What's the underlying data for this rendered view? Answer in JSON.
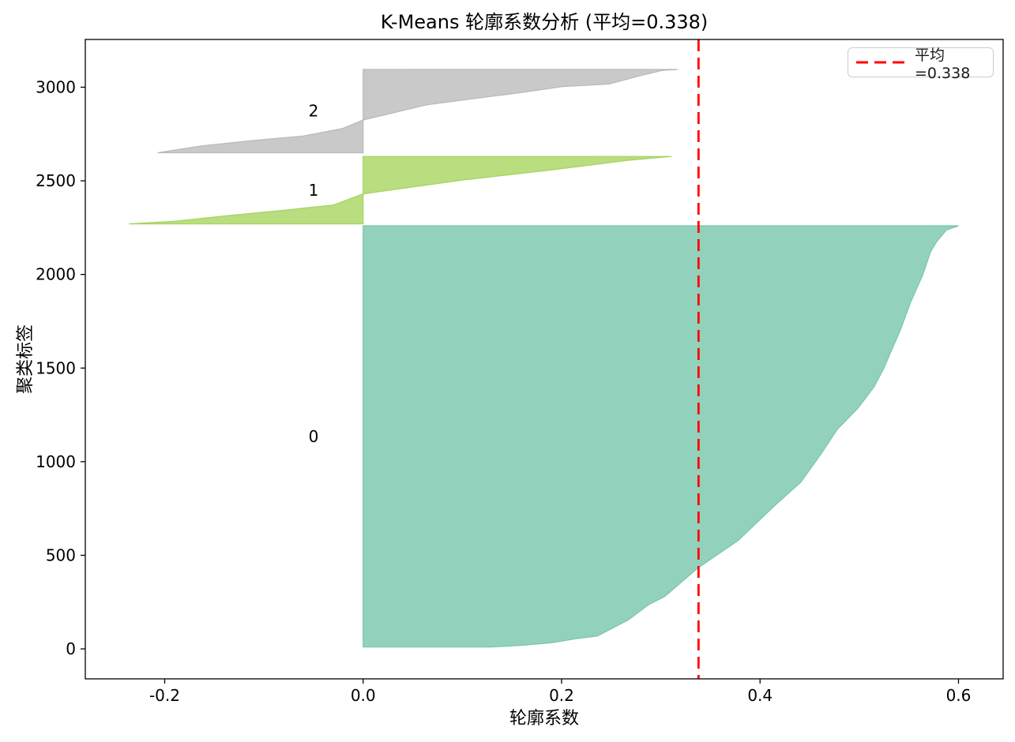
{
  "chart_data": {
    "type": "area",
    "subtype": "silhouette-plot",
    "title": "K-Means 轮廓系数分析 (平均=0.338)",
    "xlabel": "轮廓系数",
    "ylabel": "聚类标签",
    "xlim": [
      -0.28,
      0.645
    ],
    "ylim": [
      -160,
      3255
    ],
    "grid": false,
    "background": "#ffffff",
    "x_ticks": {
      "values": [
        -0.2,
        0.0,
        0.2,
        0.4,
        0.6
      ],
      "labels": [
        "-0.2",
        "0.0",
        "0.2",
        "0.4",
        "0.6"
      ]
    },
    "y_ticks": {
      "values": [
        0,
        500,
        1000,
        1500,
        2000,
        2500,
        3000
      ],
      "labels": [
        "0",
        "500",
        "1000",
        "1500",
        "2000",
        "2500",
        "3000"
      ]
    },
    "avg_silhouette": 0.338,
    "mean_line": {
      "value": 0.338,
      "label": "平均=0.338",
      "color": "#ff0000",
      "linestyle": "dashed"
    },
    "legend": {
      "position": "upper right",
      "entries": [
        {
          "label": "平均=0.338",
          "color": "#ff0000",
          "linestyle": "dashed"
        }
      ]
    },
    "cluster_label_x": -0.05,
    "clusters": [
      {
        "label": "0",
        "color": "#92d2bd",
        "edge_color": "#7cc4ac",
        "y_range": [
          10,
          2260
        ],
        "size": 2250,
        "silhouette_range": [
          0.13,
          0.6
        ],
        "profile": [
          [
            0.0,
            0.13
          ],
          [
            0.004,
            0.16
          ],
          [
            0.01,
            0.19
          ],
          [
            0.02,
            0.215
          ],
          [
            0.026,
            0.236
          ],
          [
            0.064,
            0.267
          ],
          [
            0.101,
            0.288
          ],
          [
            0.12,
            0.304
          ],
          [
            0.187,
            0.337
          ],
          [
            0.253,
            0.378
          ],
          [
            0.334,
            0.414
          ],
          [
            0.391,
            0.441
          ],
          [
            0.46,
            0.462
          ],
          [
            0.517,
            0.478
          ],
          [
            0.568,
            0.499
          ],
          [
            0.618,
            0.515
          ],
          [
            0.663,
            0.525
          ],
          [
            0.707,
            0.533
          ],
          [
            0.75,
            0.541
          ],
          [
            0.82,
            0.552
          ],
          [
            0.883,
            0.564
          ],
          [
            0.939,
            0.572
          ],
          [
            0.962,
            0.578
          ],
          [
            0.99,
            0.588
          ],
          [
            1.0,
            0.6
          ]
        ]
      },
      {
        "label": "1",
        "color": "#b9dd7f",
        "edge_color": "#a6d362",
        "y_range": [
          2270,
          2630
        ],
        "size": 360,
        "silhouette_range": [
          -0.236,
          0.311
        ],
        "profile": [
          [
            0.0,
            -0.236
          ],
          [
            0.04,
            -0.19
          ],
          [
            0.125,
            -0.135
          ],
          [
            0.2,
            -0.082
          ],
          [
            0.28,
            -0.03
          ],
          [
            0.445,
            0.0
          ],
          [
            0.65,
            0.1
          ],
          [
            0.8,
            0.19
          ],
          [
            0.94,
            0.265
          ],
          [
            1.0,
            0.311
          ]
        ]
      },
      {
        "label": "2",
        "color": "#c9c9c9",
        "edge_color": "#b9b9b9",
        "y_range": [
          2650,
          3095
        ],
        "size": 445,
        "silhouette_range": [
          -0.207,
          0.317
        ],
        "profile": [
          [
            0.0,
            -0.207
          ],
          [
            0.079,
            -0.165
          ],
          [
            0.146,
            -0.112
          ],
          [
            0.202,
            -0.06
          ],
          [
            0.29,
            -0.021
          ],
          [
            0.393,
            0.0
          ],
          [
            0.575,
            0.064
          ],
          [
            0.719,
            0.157
          ],
          [
            0.795,
            0.201
          ],
          [
            0.825,
            0.248
          ],
          [
            0.921,
            0.278
          ],
          [
            0.987,
            0.301
          ],
          [
            1.0,
            0.317
          ]
        ]
      }
    ]
  }
}
